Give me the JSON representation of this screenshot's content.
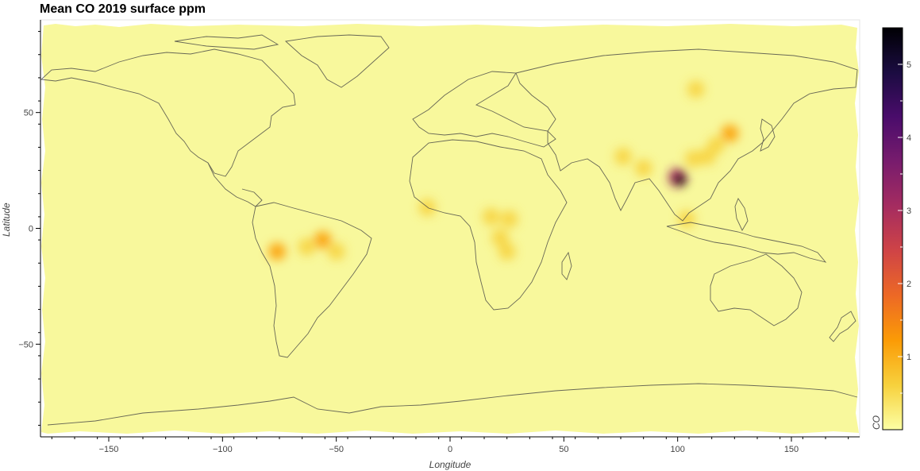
{
  "title": "Mean CO 2019 surface ppm",
  "x_axis": {
    "label": "Longitude",
    "range": [
      -180,
      180
    ],
    "ticks": [
      -150,
      -100,
      -50,
      0,
      50,
      100,
      150
    ],
    "tick_labels": [
      "−150",
      "−100",
      "−50",
      "0",
      "50",
      "100",
      "150"
    ]
  },
  "y_axis": {
    "label": "Latitude",
    "range": [
      -90,
      90
    ],
    "ticks": [
      50,
      0,
      -50
    ],
    "tick_labels": [
      "50",
      "0",
      "−50"
    ]
  },
  "colorbar": {
    "label": "CO",
    "colormap": "inferno_r",
    "range": [
      0,
      5.5
    ],
    "ticks": [
      1,
      2,
      3,
      4,
      5
    ],
    "tick_labels": [
      "1",
      "2",
      "3",
      "4",
      "5"
    ],
    "colors": [
      "#fcffa4",
      "#f7d13d",
      "#fb9b06",
      "#ed6925",
      "#cf4446",
      "#a52c60",
      "#781c6d",
      "#4a0c6b",
      "#1b0c41",
      "#000004"
    ]
  },
  "base_color": "#f8f89c",
  "chart_data": {
    "type": "heatmap",
    "title": "Mean CO 2019 surface ppm",
    "xlabel": "Longitude",
    "ylabel": "Latitude",
    "xlim": [
      -180,
      180
    ],
    "ylim": [
      -90,
      90
    ],
    "color_label": "CO",
    "background_value": 0.15,
    "hotspots": [
      {
        "lon": 101,
        "lat": 21,
        "value": 5.3
      },
      {
        "lon": 100,
        "lat": 22,
        "value": 3.0
      },
      {
        "lon": 113,
        "lat": 31,
        "value": 0.9
      },
      {
        "lon": 117,
        "lat": 36,
        "value": 0.8
      },
      {
        "lon": 123,
        "lat": 41,
        "value": 1.0
      },
      {
        "lon": 107,
        "lat": 30,
        "value": 0.6
      },
      {
        "lon": 85,
        "lat": 26,
        "value": 0.6
      },
      {
        "lon": 76,
        "lat": 31,
        "value": 0.7
      },
      {
        "lon": 108,
        "lat": 60,
        "value": 0.6
      },
      {
        "lon": 22,
        "lat": -4,
        "value": 0.9
      },
      {
        "lon": 25,
        "lat": -10,
        "value": 0.8
      },
      {
        "lon": 18,
        "lat": 5,
        "value": 0.5
      },
      {
        "lon": 26,
        "lat": 4,
        "value": 0.5
      },
      {
        "lon": -76,
        "lat": -10,
        "value": 1.0
      },
      {
        "lon": -56,
        "lat": -5,
        "value": 1.0
      },
      {
        "lon": -63,
        "lat": -8,
        "value": 0.7
      },
      {
        "lon": -50,
        "lat": -10,
        "value": 0.6
      },
      {
        "lon": -10,
        "lat": 9,
        "value": 0.4
      },
      {
        "lon": 104,
        "lat": 4,
        "value": 0.4
      }
    ]
  }
}
